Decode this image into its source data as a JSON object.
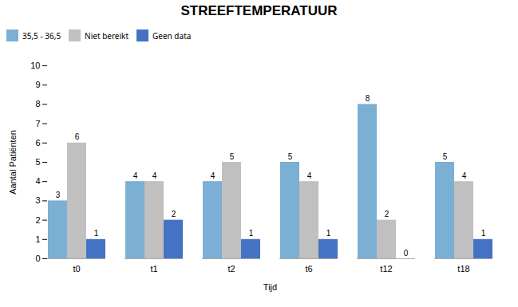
{
  "chart_data": {
    "type": "bar",
    "title": "STREEFTEMPERATUUR",
    "xlabel": "Tijd",
    "ylabel": "Aantal Patiënten",
    "categories": [
      "t0",
      "t1",
      "t2",
      "t6",
      "t12",
      "t18"
    ],
    "series": [
      {
        "name": "35,5 - 36,5",
        "color": "#7BAFD4",
        "values": [
          3,
          4,
          4,
          5,
          8,
          5
        ]
      },
      {
        "name": "Niet bereikt",
        "color": "#C0C0C0",
        "values": [
          6,
          4,
          5,
          4,
          2,
          4
        ]
      },
      {
        "name": "Geen data",
        "color": "#4472C4",
        "values": [
          1,
          2,
          1,
          1,
          0,
          1
        ]
      }
    ],
    "ylim": [
      0,
      10
    ],
    "yticks": [
      0,
      1,
      2,
      3,
      4,
      5,
      6,
      7,
      8,
      9,
      10
    ],
    "grid": false,
    "legend": "top",
    "data_labels": true
  }
}
